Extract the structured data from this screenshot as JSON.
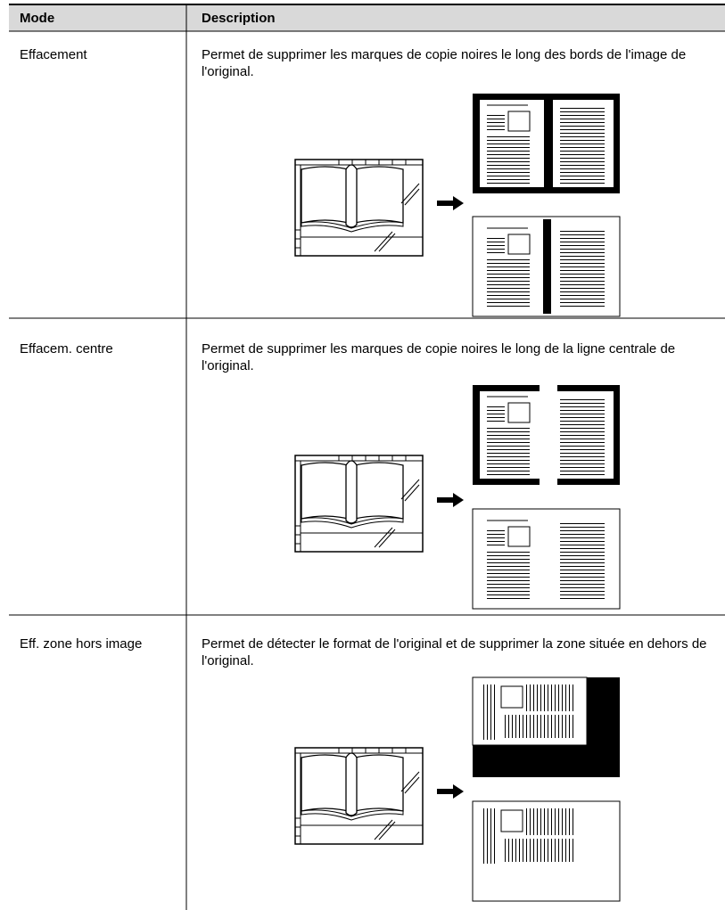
{
  "table": {
    "header": {
      "mode": "Mode",
      "description": "Description"
    },
    "rows": [
      {
        "mode": "Effacement",
        "description": "Permet de supprimer les marques de copie noires le long des bords de l'image de l'original."
      },
      {
        "mode": "Effacem. centre",
        "description": "Permet de supprimer les marques de copie noires le long de la ligne centrale de l'original."
      },
      {
        "mode": "Eff. zone hors image",
        "description": "Permet de détecter le format de l'original et de supprimer la zone située en dehors de l'original."
      }
    ]
  }
}
